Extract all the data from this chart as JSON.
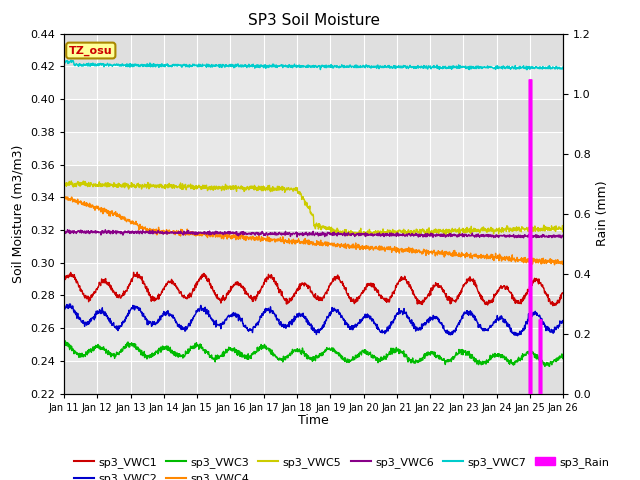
{
  "title": "SP3 Soil Moisture",
  "xlabel": "Time",
  "ylabel_left": "Soil Moisture (m3/m3)",
  "ylabel_right": "Rain (mm)",
  "ylim_left": [
    0.22,
    0.44
  ],
  "ylim_right": [
    0.0,
    1.2
  ],
  "yticks_left": [
    0.22,
    0.24,
    0.26,
    0.28,
    0.3,
    0.32,
    0.34,
    0.36,
    0.38,
    0.4,
    0.42,
    0.44
  ],
  "yticks_right": [
    0.0,
    0.2,
    0.4,
    0.6,
    0.8,
    1.0,
    1.2
  ],
  "xlim": [
    0,
    15
  ],
  "xtick_labels": [
    "Jan 11",
    "Jan 12",
    "Jan 13",
    "Jan 14",
    "Jan 15",
    "Jan 16",
    "Jan 17",
    "Jan 18",
    "Jan 19",
    "Jan 20",
    "Jan 21",
    "Jan 22",
    "Jan 23",
    "Jan 24",
    "Jan 25",
    "Jan 26"
  ],
  "annotation": "TZ_osu",
  "colors": {
    "VWC1": "#cc0000",
    "VWC2": "#0000cc",
    "VWC3": "#00bb00",
    "VWC4": "#ff8800",
    "VWC5": "#cccc00",
    "VWC6": "#880088",
    "VWC7": "#00cccc",
    "Rain": "#ff00ff"
  },
  "bg_color": "#e8e8e8"
}
